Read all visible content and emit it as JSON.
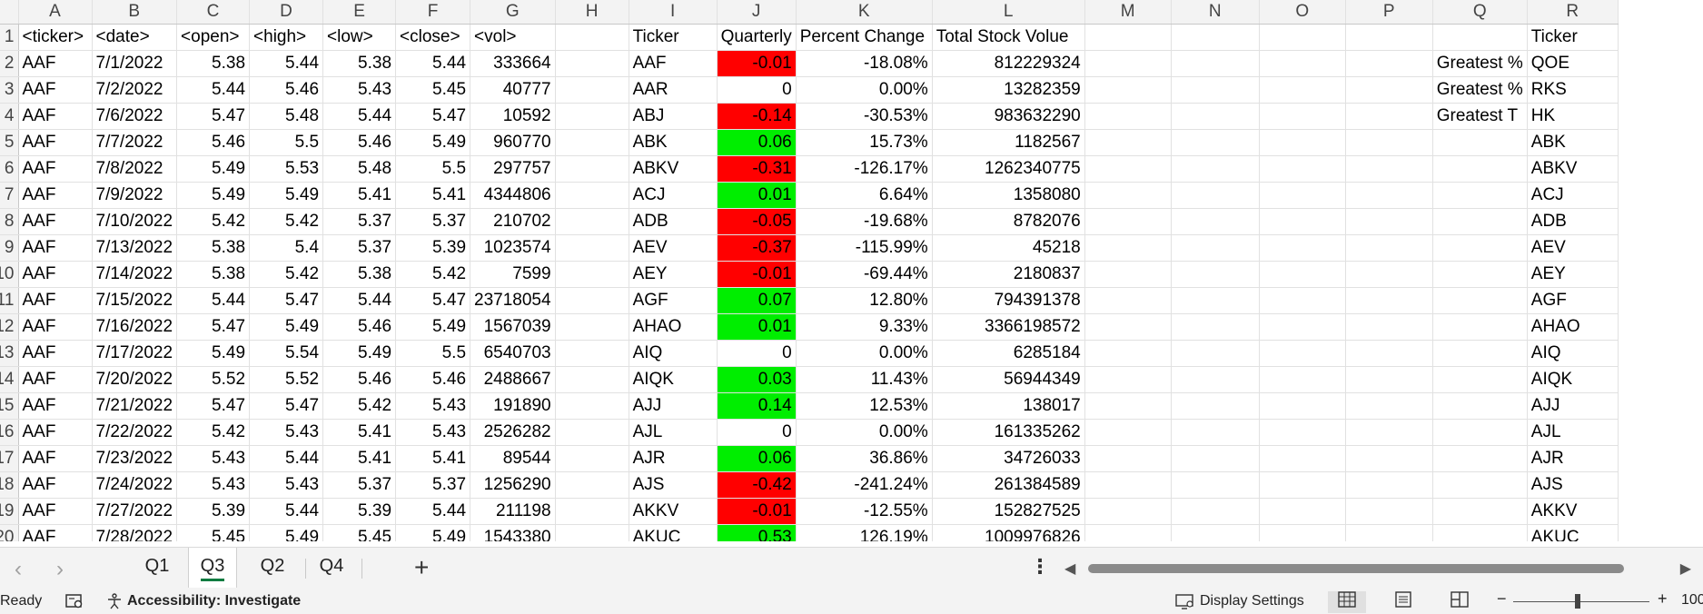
{
  "columns": [
    "A",
    "B",
    "C",
    "D",
    "E",
    "F",
    "G",
    "H",
    "I",
    "J",
    "K",
    "L",
    "M",
    "N",
    "O",
    "P",
    "Q",
    "R"
  ],
  "rows": [
    {
      "n": "1",
      "ticker": "<ticker>",
      "date": "<date>",
      "open": "<open>",
      "high": "<high>",
      "low": "<low>",
      "close": "<close>",
      "vol": "<vol>",
      "t2": "Ticker",
      "qc": "Quarterly",
      "pc": "Percent Change",
      "tsv": "Total Stock Volue",
      "q": "",
      "r": "Ticker"
    },
    {
      "n": "2",
      "ticker": "AAF",
      "date": "7/1/2022",
      "open": "5.38",
      "high": "5.44",
      "low": "5.38",
      "close": "5.44",
      "vol": "333664",
      "t2": "AAF",
      "qc": "-0.01",
      "pc": "-18.08%",
      "tsv": "812229324",
      "q": "Greatest %",
      "r": "QOE"
    },
    {
      "n": "3",
      "ticker": "AAF",
      "date": "7/2/2022",
      "open": "5.44",
      "high": "5.46",
      "low": "5.43",
      "close": "5.45",
      "vol": "40777",
      "t2": "AAR",
      "qc": "0",
      "pc": "0.00%",
      "tsv": "13282359",
      "q": "Greatest %",
      "r": "RKS"
    },
    {
      "n": "4",
      "ticker": "AAF",
      "date": "7/6/2022",
      "open": "5.47",
      "high": "5.48",
      "low": "5.44",
      "close": "5.47",
      "vol": "10592",
      "t2": "ABJ",
      "qc": "-0.14",
      "pc": "-30.53%",
      "tsv": "983632290",
      "q": "Greatest T",
      "r": "HK"
    },
    {
      "n": "5",
      "ticker": "AAF",
      "date": "7/7/2022",
      "open": "5.46",
      "high": "5.5",
      "low": "5.46",
      "close": "5.49",
      "vol": "960770",
      "t2": "ABK",
      "qc": "0.06",
      "pc": "15.73%",
      "tsv": "1182567",
      "q": "",
      "r": "ABK"
    },
    {
      "n": "6",
      "ticker": "AAF",
      "date": "7/8/2022",
      "open": "5.49",
      "high": "5.53",
      "low": "5.48",
      "close": "5.5",
      "vol": "297757",
      "t2": "ABKV",
      "qc": "-0.31",
      "pc": "-126.17%",
      "tsv": "1262340775",
      "q": "",
      "r": "ABKV"
    },
    {
      "n": "7",
      "ticker": "AAF",
      "date": "7/9/2022",
      "open": "5.49",
      "high": "5.49",
      "low": "5.41",
      "close": "5.41",
      "vol": "4344806",
      "t2": "ACJ",
      "qc": "0.01",
      "pc": "6.64%",
      "tsv": "1358080",
      "q": "",
      "r": "ACJ"
    },
    {
      "n": "8",
      "ticker": "AAF",
      "date": "7/10/2022",
      "open": "5.42",
      "high": "5.42",
      "low": "5.37",
      "close": "5.37",
      "vol": "210702",
      "t2": "ADB",
      "qc": "-0.05",
      "pc": "-19.68%",
      "tsv": "8782076",
      "q": "",
      "r": "ADB"
    },
    {
      "n": "9",
      "ticker": "AAF",
      "date": "7/13/2022",
      "open": "5.38",
      "high": "5.4",
      "low": "5.37",
      "close": "5.39",
      "vol": "1023574",
      "t2": "AEV",
      "qc": "-0.37",
      "pc": "-115.99%",
      "tsv": "45218",
      "q": "",
      "r": "AEV"
    },
    {
      "n": "10",
      "ticker": "AAF",
      "date": "7/14/2022",
      "open": "5.38",
      "high": "5.42",
      "low": "5.38",
      "close": "5.42",
      "vol": "7599",
      "t2": "AEY",
      "qc": "-0.01",
      "pc": "-69.44%",
      "tsv": "2180837",
      "q": "",
      "r": "AEY"
    },
    {
      "n": "11",
      "ticker": "AAF",
      "date": "7/15/2022",
      "open": "5.44",
      "high": "5.47",
      "low": "5.44",
      "close": "5.47",
      "vol": "23718054",
      "t2": "AGF",
      "qc": "0.07",
      "pc": "12.80%",
      "tsv": "794391378",
      "q": "",
      "r": "AGF"
    },
    {
      "n": "12",
      "ticker": "AAF",
      "date": "7/16/2022",
      "open": "5.47",
      "high": "5.49",
      "low": "5.46",
      "close": "5.49",
      "vol": "1567039",
      "t2": "AHAO",
      "qc": "0.01",
      "pc": "9.33%",
      "tsv": "3366198572",
      "q": "",
      "r": "AHAO"
    },
    {
      "n": "13",
      "ticker": "AAF",
      "date": "7/17/2022",
      "open": "5.49",
      "high": "5.54",
      "low": "5.49",
      "close": "5.5",
      "vol": "6540703",
      "t2": "AIQ",
      "qc": "0",
      "pc": "0.00%",
      "tsv": "6285184",
      "q": "",
      "r": "AIQ"
    },
    {
      "n": "14",
      "ticker": "AAF",
      "date": "7/20/2022",
      "open": "5.52",
      "high": "5.52",
      "low": "5.46",
      "close": "5.46",
      "vol": "2488667",
      "t2": "AIQK",
      "qc": "0.03",
      "pc": "11.43%",
      "tsv": "56944349",
      "q": "",
      "r": "AIQK"
    },
    {
      "n": "15",
      "ticker": "AAF",
      "date": "7/21/2022",
      "open": "5.47",
      "high": "5.47",
      "low": "5.42",
      "close": "5.43",
      "vol": "191890",
      "t2": "AJJ",
      "qc": "0.14",
      "pc": "12.53%",
      "tsv": "138017",
      "q": "",
      "r": "AJJ"
    },
    {
      "n": "16",
      "ticker": "AAF",
      "date": "7/22/2022",
      "open": "5.42",
      "high": "5.43",
      "low": "5.41",
      "close": "5.43",
      "vol": "2526282",
      "t2": "AJL",
      "qc": "0",
      "pc": "0.00%",
      "tsv": "161335262",
      "q": "",
      "r": "AJL"
    },
    {
      "n": "17",
      "ticker": "AAF",
      "date": "7/23/2022",
      "open": "5.43",
      "high": "5.44",
      "low": "5.41",
      "close": "5.41",
      "vol": "89544",
      "t2": "AJR",
      "qc": "0.06",
      "pc": "36.86%",
      "tsv": "34726033",
      "q": "",
      "r": "AJR"
    },
    {
      "n": "18",
      "ticker": "AAF",
      "date": "7/24/2022",
      "open": "5.43",
      "high": "5.43",
      "low": "5.37",
      "close": "5.37",
      "vol": "1256290",
      "t2": "AJS",
      "qc": "-0.42",
      "pc": "-241.24%",
      "tsv": "261384589",
      "q": "",
      "r": "AJS"
    },
    {
      "n": "19",
      "ticker": "AAF",
      "date": "7/27/2022",
      "open": "5.39",
      "high": "5.44",
      "low": "5.39",
      "close": "5.44",
      "vol": "211198",
      "t2": "AKKV",
      "qc": "-0.01",
      "pc": "-12.55%",
      "tsv": "152827525",
      "q": "",
      "r": "AKKV"
    },
    {
      "n": "20",
      "ticker": "AAF",
      "date": "7/28/2022",
      "open": "5.45",
      "high": "5.49",
      "low": "5.45",
      "close": "5.49",
      "vol": "1543380",
      "t2": "AKUC",
      "qc": "0.53",
      "pc": "126.19%",
      "tsv": "1009976826",
      "q": "",
      "r": "AKUC"
    }
  ],
  "colors": {
    "negative": "#ff0000",
    "positive": "#00ee00",
    "accent": "#107c41"
  },
  "tabs": {
    "prev_icon": "‹",
    "next_icon": "›",
    "items": [
      "Q1",
      "Q3",
      "Q2",
      "Q4"
    ],
    "active": "Q3",
    "add": "+",
    "more": "⋮"
  },
  "status": {
    "ready": "Ready",
    "accessibility": "Accessibility: Investigate",
    "display_settings": "Display Settings",
    "zoom": "100"
  }
}
